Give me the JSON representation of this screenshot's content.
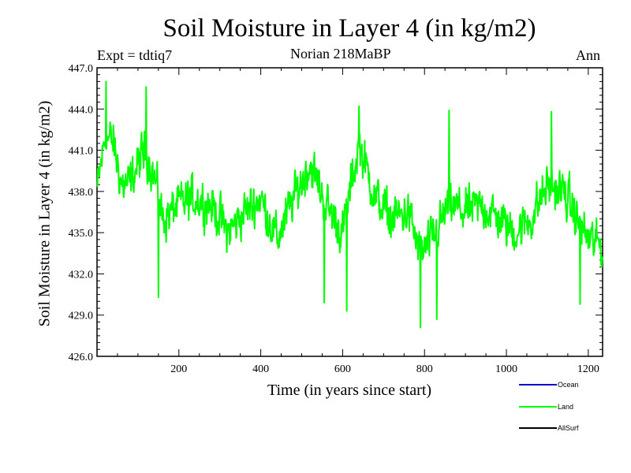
{
  "chart_data": {
    "type": "line",
    "title": "Soil Moisture in Layer 4 (in kg/m2)",
    "experiment": "Expt = tdtiq7",
    "subtitle": "Norian   218MaBP",
    "period": "Ann",
    "xlabel": "Time (in years since start)",
    "ylabel": "Soil Moisture in Layer 4 (in kg/m2)",
    "xlim": [
      0,
      1235
    ],
    "ylim": [
      426.0,
      447.0
    ],
    "x_ticks": [
      200,
      400,
      600,
      800,
      1000,
      1200
    ],
    "y_ticks": [
      "426.0",
      "429.0",
      "432.0",
      "435.0",
      "438.0",
      "441.0",
      "444.0",
      "447.0"
    ],
    "legend": [
      {
        "name": "Ocean",
        "color": "#0000cc"
      },
      {
        "name": "Land",
        "color": "#00ff00"
      },
      {
        "name": "AllSurf",
        "color": "#000000"
      }
    ],
    "series": [
      {
        "name": "Land",
        "color": "#00ff00",
        "x_start": 1,
        "x_step": 1,
        "envelope_x": [
          0,
          20,
          40,
          60,
          80,
          100,
          120,
          140,
          160,
          180,
          200,
          240,
          280,
          320,
          360,
          400,
          440,
          480,
          520,
          560,
          600,
          640,
          680,
          720,
          760,
          790,
          820,
          860,
          900,
          940,
          980,
          1020,
          1060,
          1100,
          1140,
          1180,
          1200,
          1235
        ],
        "envelope_y": [
          438.0,
          442.0,
          441.5,
          438.5,
          438.5,
          440.0,
          441.0,
          439.0,
          436.0,
          436.5,
          437.0,
          437.5,
          437.0,
          435.0,
          436.5,
          437.5,
          434.5,
          437.5,
          440.0,
          437.0,
          435.0,
          441.5,
          437.5,
          436.0,
          436.5,
          433.5,
          434.5,
          437.0,
          436.5,
          437.0,
          436.0,
          435.0,
          436.0,
          438.5,
          438.0,
          435.5,
          434.5,
          434.0
        ],
        "amplitude": 2.4,
        "min": 428.1,
        "max": 446.0,
        "peaks": [
          [
            22,
            446.0
          ],
          [
            120,
            445.6
          ],
          [
            640,
            444.2
          ],
          [
            860,
            443.9
          ],
          [
            1110,
            443.8
          ]
        ],
        "troughs": [
          [
            150,
            430.3
          ],
          [
            555,
            429.9
          ],
          [
            610,
            429.3
          ],
          [
            790,
            428.1
          ],
          [
            830,
            428.7
          ],
          [
            1180,
            429.8
          ]
        ]
      }
    ]
  }
}
